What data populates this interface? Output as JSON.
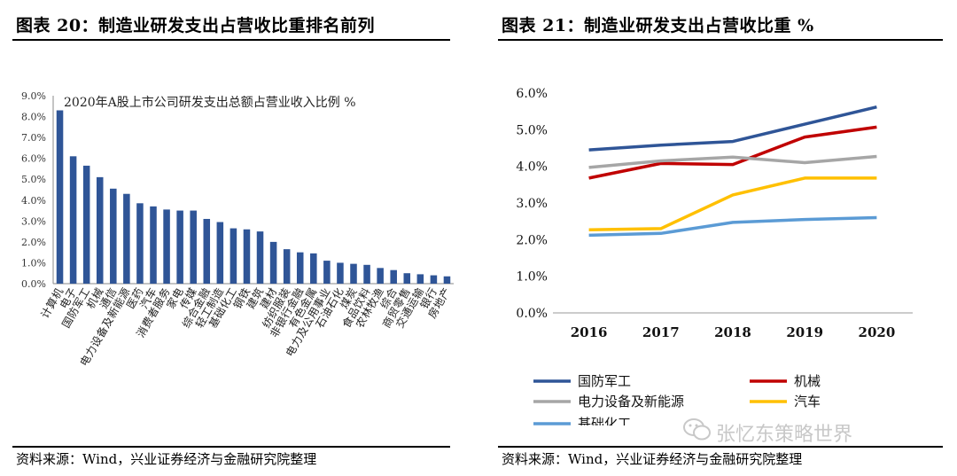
{
  "left_panel": {
    "title": "图表 20：制造业研发支出占营收比重排名前列",
    "source": "资料来源：Wind，兴业证券经济与金融研究院整理"
  },
  "right_panel": {
    "title": "图表 21：制造业研发支出占营收比重 %",
    "source": "资料来源：Wind，兴业证券经济与金融研究院整理"
  },
  "watermark": {
    "text": "张忆东策略世界",
    "icon": "wechat-icon"
  },
  "colors": {
    "bar": "#2F5597",
    "series": [
      "#2F5597",
      "#C00000",
      "#A6A6A6",
      "#FFC000",
      "#5B9BD5"
    ]
  },
  "chart_data": [
    {
      "type": "bar",
      "title": "2020年A股上市公司研发支出总额占营业收入比例 %",
      "categories": [
        "计算机",
        "电子",
        "国防军工",
        "机械",
        "通信",
        "电力设备及新能源",
        "医药",
        "汽车",
        "消费者服务",
        "家电",
        "传媒",
        "综合金融",
        "轻工制造",
        "基础化工",
        "钢铁",
        "建筑",
        "建材",
        "纺织服装",
        "非银行金融",
        "有色金属",
        "电力及公用事业",
        "石油石化",
        "煤炭",
        "食品饮料",
        "农林牧渔",
        "综合",
        "商贸零售",
        "交通运输",
        "银行",
        "房地产"
      ],
      "values": [
        8.3,
        6.1,
        5.65,
        5.1,
        4.55,
        4.3,
        3.85,
        3.7,
        3.55,
        3.5,
        3.5,
        3.1,
        2.95,
        2.65,
        2.6,
        2.5,
        2.0,
        1.65,
        1.5,
        1.45,
        1.1,
        1.0,
        0.95,
        0.9,
        0.75,
        0.65,
        0.5,
        0.45,
        0.4,
        0.35
      ],
      "ylim": [
        0,
        9
      ],
      "ytick_labels": [
        "0.0%",
        "1.0%",
        "2.0%",
        "3.0%",
        "4.0%",
        "5.0%",
        "6.0%",
        "7.0%",
        "8.0%",
        "9.0%"
      ],
      "xlabel": "",
      "ylabel": ""
    },
    {
      "type": "line",
      "x": [
        "2016",
        "2017",
        "2018",
        "2019",
        "2020"
      ],
      "series": [
        {
          "name": "国防军工",
          "values": [
            4.45,
            4.58,
            4.68,
            5.15,
            5.62
          ]
        },
        {
          "name": "机械",
          "values": [
            3.68,
            4.08,
            4.05,
            4.8,
            5.07
          ]
        },
        {
          "name": "电力设备及新能源",
          "values": [
            3.97,
            4.15,
            4.25,
            4.1,
            4.27
          ]
        },
        {
          "name": "汽车",
          "values": [
            2.27,
            2.3,
            3.22,
            3.68,
            3.68
          ]
        },
        {
          "name": "基础化工",
          "values": [
            2.12,
            2.17,
            2.47,
            2.55,
            2.6
          ]
        }
      ],
      "ylim": [
        0,
        6
      ],
      "ytick_labels": [
        "0.0%",
        "1.0%",
        "2.0%",
        "3.0%",
        "4.0%",
        "5.0%",
        "6.0%"
      ],
      "legend_position": "bottom"
    }
  ]
}
